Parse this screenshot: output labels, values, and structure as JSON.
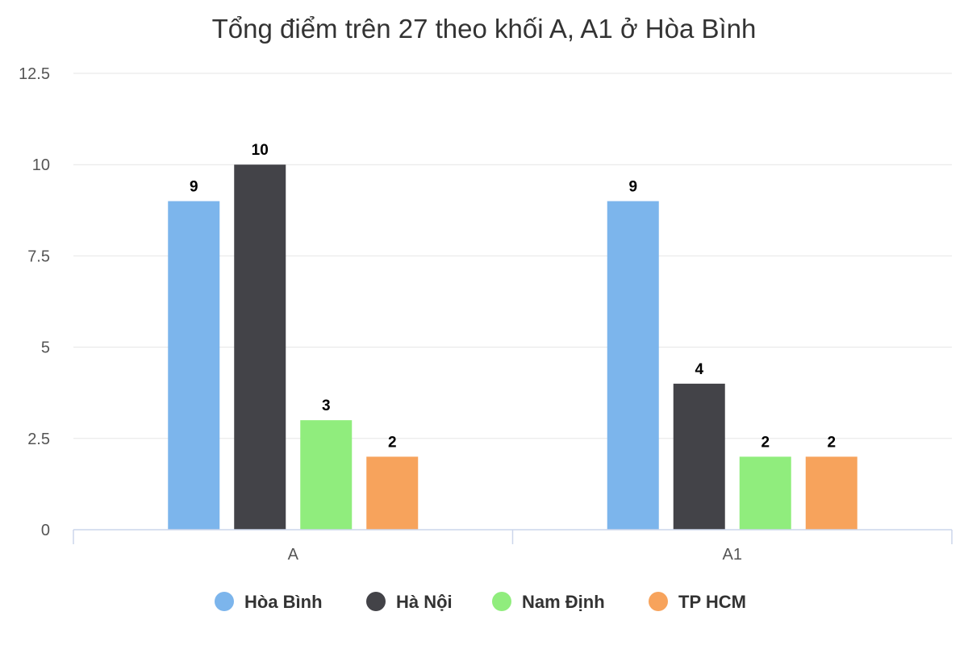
{
  "chart_data": {
    "type": "bar",
    "title": "Tổng điểm trên 27 theo khối A, A1 ở Hòa Bình",
    "xlabel": "",
    "ylabel": "",
    "categories": [
      "A",
      "A1"
    ],
    "series": [
      {
        "name": "Hòa Bình",
        "color": "#7cb5ec",
        "values": [
          9,
          9
        ]
      },
      {
        "name": "Hà Nội",
        "color": "#434348",
        "values": [
          10,
          4
        ]
      },
      {
        "name": "Nam Định",
        "color": "#90ed7d",
        "values": [
          3,
          2
        ]
      },
      {
        "name": "TP HCM",
        "color": "#f7a35c",
        "values": [
          2,
          2
        ]
      }
    ],
    "ylim": [
      0,
      12.5
    ],
    "yticks": [
      "0",
      "2.5",
      "5",
      "7.5",
      "10",
      "12.5"
    ],
    "grid": true,
    "legend": "bottom-center",
    "data_labels": true
  }
}
